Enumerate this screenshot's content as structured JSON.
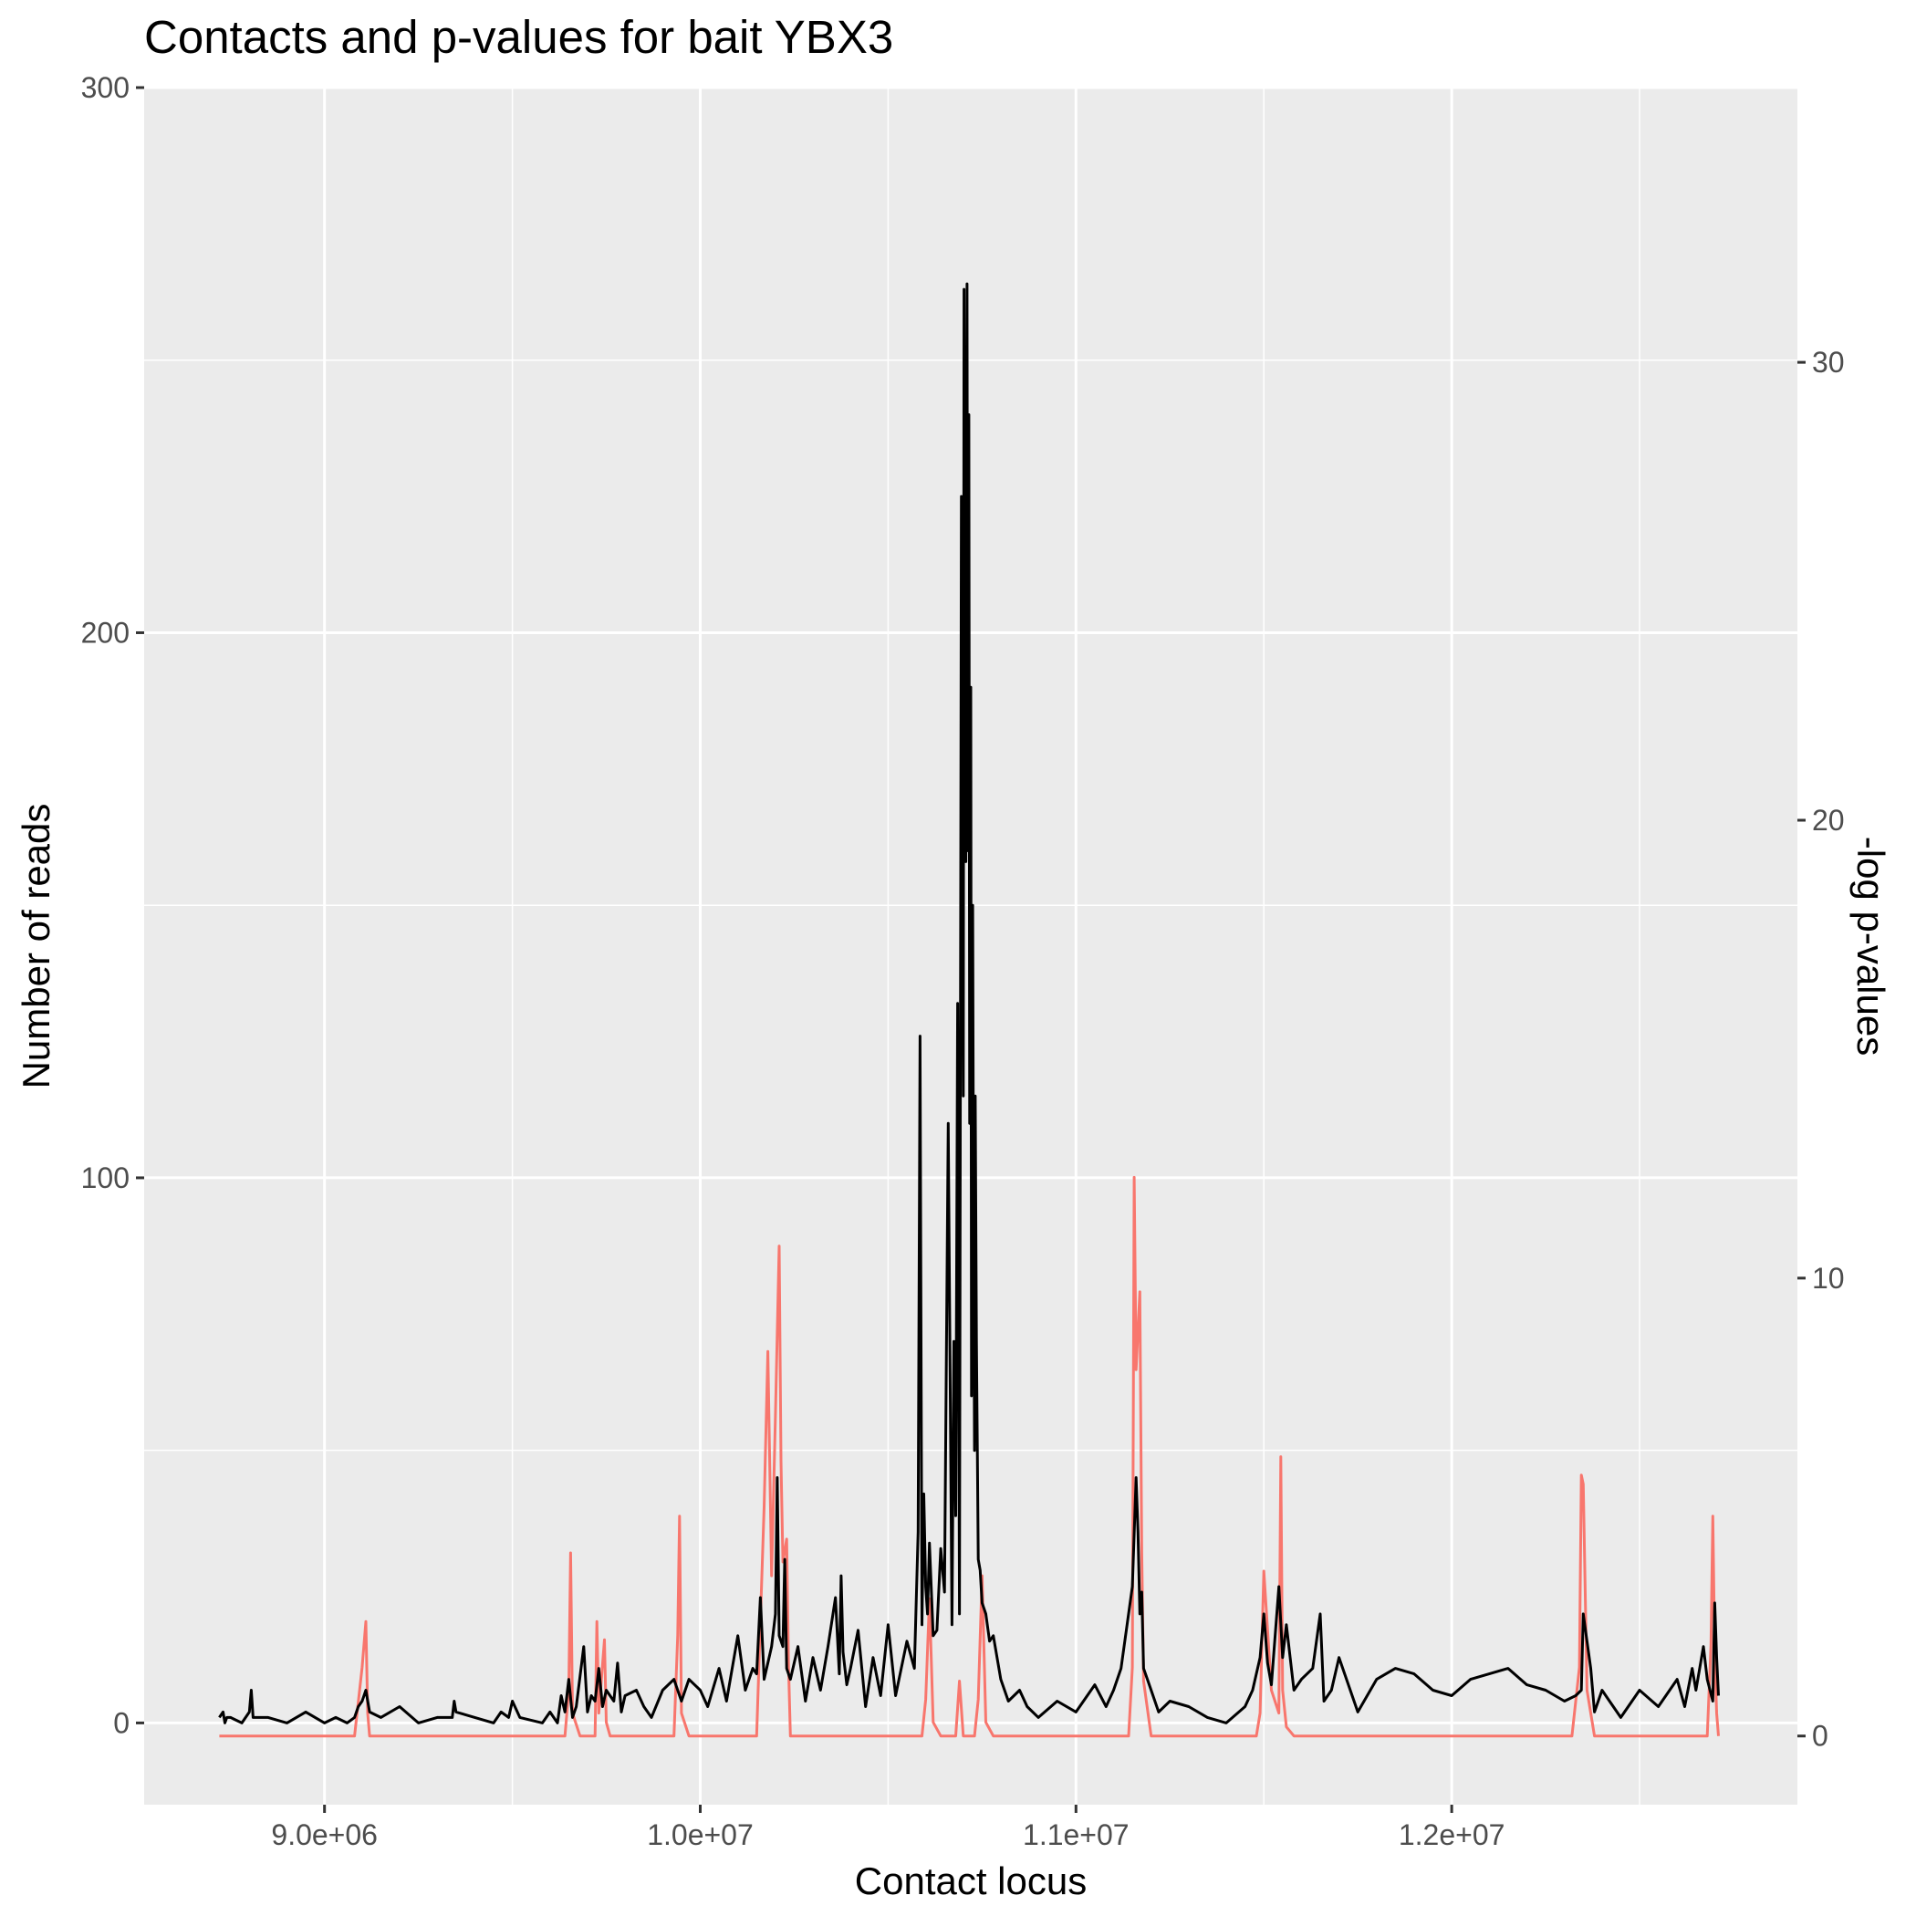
{
  "chart_data": {
    "type": "line",
    "title": "Contacts and p-values for bait YBX3",
    "xlabel": "Contact locus",
    "ylabel": "Number of reads",
    "y2label": "-log p-values",
    "xlim": [
      8520000,
      12920000
    ],
    "ylim": [
      -15,
      300
    ],
    "y2lim": [
      -1.5,
      36
    ],
    "x_ticks": [
      {
        "value": 9000000,
        "label": "9.0e+06"
      },
      {
        "value": 10000000,
        "label": "1.0e+07"
      },
      {
        "value": 11000000,
        "label": "1.1e+07"
      },
      {
        "value": 12000000,
        "label": "1.2e+07"
      }
    ],
    "x_minor_ticks": [
      9500000,
      10500000,
      11500000,
      12500000
    ],
    "y_ticks": [
      {
        "value": 0,
        "label": "0"
      },
      {
        "value": 100,
        "label": "100"
      },
      {
        "value": 200,
        "label": "200"
      },
      {
        "value": 300,
        "label": "300"
      }
    ],
    "y_minor_ticks": [
      50,
      150,
      250
    ],
    "y2_ticks": [
      {
        "value": 0,
        "label": "0"
      },
      {
        "value": 10,
        "label": "10"
      },
      {
        "value": 20,
        "label": "20"
      },
      {
        "value": 30,
        "label": "30"
      }
    ],
    "grid": true,
    "colors": {
      "panel": "#EBEBEB",
      "grid": "#FFFFFF",
      "reads": "#000000",
      "pvalues": "#F8766D"
    },
    "series": [
      {
        "axis": "left",
        "color": "#000000",
        "x": [
          8720000,
          8730000,
          8735000,
          8740000,
          8750000,
          8780000,
          8800000,
          8805000,
          8810000,
          8850000,
          8900000,
          8950000,
          9000000,
          9030000,
          9060000,
          9080000,
          9090000,
          9100000,
          9110000,
          9120000,
          9150000,
          9200000,
          9250000,
          9300000,
          9340000,
          9345000,
          9350000,
          9400000,
          9450000,
          9470000,
          9490000,
          9500000,
          9520000,
          9580000,
          9600000,
          9620000,
          9630000,
          9640000,
          9650000,
          9660000,
          9670000,
          9690000,
          9700000,
          9710000,
          9720000,
          9730000,
          9740000,
          9750000,
          9770000,
          9780000,
          9790000,
          9800000,
          9830000,
          9850000,
          9870000,
          9900000,
          9930000,
          9950000,
          9970000,
          10000000,
          10020000,
          10050000,
          10070000,
          10100000,
          10120000,
          10140000,
          10150000,
          10160000,
          10170000,
          10180000,
          10190000,
          10200000,
          10205000,
          10210000,
          10220000,
          10225000,
          10230000,
          10240000,
          10260000,
          10280000,
          10300000,
          10320000,
          10340000,
          10360000,
          10370000,
          10375000,
          10380000,
          10390000,
          10400000,
          10420000,
          10440000,
          10460000,
          10480000,
          10500000,
          10520000,
          10550000,
          10570000,
          10580000,
          10585000,
          10590000,
          10595000,
          10600000,
          10605000,
          10610000,
          10620000,
          10630000,
          10640000,
          10650000,
          10660000,
          10670000,
          10675000,
          10680000,
          10685000,
          10690000,
          10695000,
          10700000,
          10702000,
          10705000,
          10707000,
          10710000,
          10712000,
          10715000,
          10717000,
          10720000,
          10722000,
          10725000,
          10727000,
          10730000,
          10732000,
          10735000,
          10740000,
          10745000,
          10750000,
          10760000,
          10770000,
          10780000,
          10800000,
          10820000,
          10850000,
          10870000,
          10900000,
          10950000,
          11000000,
          11050000,
          11080000,
          11100000,
          11120000,
          11150000,
          11160000,
          11165000,
          11170000,
          11175000,
          11180000,
          11190000,
          11200000,
          11220000,
          11250000,
          11300000,
          11350000,
          11400000,
          11450000,
          11470000,
          11490000,
          11500000,
          11510000,
          11520000,
          11540000,
          11550000,
          11560000,
          11580000,
          11600000,
          11630000,
          11650000,
          11660000,
          11680000,
          11700000,
          11750000,
          11800000,
          11850000,
          11900000,
          11950000,
          12000000,
          12050000,
          12100000,
          12150000,
          12200000,
          12250000,
          12300000,
          12330000,
          12345000,
          12350000,
          12360000,
          12370000,
          12380000,
          12400000,
          12420000,
          12450000,
          12500000,
          12550000,
          12600000,
          12620000,
          12640000,
          12650000,
          12670000,
          12680000,
          12695000,
          12700000,
          12705000,
          12710000
        ],
        "y": [
          1,
          2,
          0,
          1,
          1,
          0,
          2,
          6,
          1,
          1,
          0,
          2,
          0,
          1,
          0,
          1,
          3,
          4,
          6,
          2,
          1,
          3,
          0,
          1,
          1,
          4,
          2,
          1,
          0,
          2,
          1,
          4,
          1,
          0,
          2,
          0,
          5,
          2,
          8,
          1,
          3,
          14,
          2,
          5,
          4,
          10,
          3,
          6,
          4,
          11,
          2,
          5,
          6,
          3,
          1,
          6,
          8,
          4,
          8,
          6,
          3,
          10,
          4,
          16,
          6,
          10,
          9,
          23,
          8,
          11,
          14,
          20,
          45,
          16,
          14,
          30,
          10,
          8,
          14,
          4,
          12,
          6,
          14,
          23,
          9,
          27,
          13,
          7,
          10,
          17,
          3,
          12,
          5,
          18,
          5,
          15,
          10,
          35,
          126,
          18,
          42,
          25,
          20,
          33,
          16,
          17,
          32,
          24,
          110,
          18,
          70,
          38,
          132,
          20,
          225,
          115,
          263,
          180,
          158,
          264,
          160,
          240,
          110,
          190,
          60,
          150,
          100,
          50,
          115,
          70,
          30,
          28,
          22,
          20,
          15,
          16,
          8,
          4,
          6,
          3,
          1,
          4,
          2,
          7,
          3,
          6,
          10,
          25,
          45,
          35,
          20,
          24,
          10,
          8,
          6,
          2,
          4,
          3,
          1,
          0,
          3,
          6,
          12,
          20,
          11,
          7,
          25,
          12,
          18,
          6,
          8,
          10,
          20,
          4,
          6,
          12,
          2,
          8,
          10,
          9,
          6,
          5,
          8,
          9,
          10,
          7,
          6,
          4,
          5,
          6,
          20,
          15,
          10,
          2,
          6,
          4,
          1,
          6,
          3,
          8,
          3,
          10,
          6,
          14,
          8,
          4,
          22,
          12,
          5
        ]
      },
      {
        "axis": "right",
        "color": "#F8766D",
        "x": [
          8720000,
          9080000,
          9100000,
          9110000,
          9115000,
          9120000,
          9140000,
          9640000,
          9650000,
          9655000,
          9660000,
          9680000,
          9720000,
          9725000,
          9730000,
          9745000,
          9750000,
          9760000,
          9930000,
          9940000,
          9945000,
          9950000,
          9970000,
          10150000,
          10170000,
          10180000,
          10190000,
          10200000,
          10210000,
          10215000,
          10220000,
          10230000,
          10235000,
          10240000,
          10260000,
          10590000,
          10600000,
          10610000,
          10620000,
          10640000,
          10680000,
          10690000,
          10700000,
          10730000,
          10740000,
          10750000,
          10760000,
          10780000,
          10800000,
          11140000,
          11150000,
          11155000,
          11160000,
          11170000,
          11175000,
          11180000,
          11200000,
          11230000,
          11480000,
          11490000,
          11500000,
          11520000,
          11540000,
          11545000,
          11550000,
          11560000,
          11580000,
          12320000,
          12340000,
          12345000,
          12350000,
          12360000,
          12380000,
          12680000,
          12690000,
          12695000,
          12700000,
          12705000,
          12710000
        ],
        "y": [
          0,
          0,
          1.5,
          2.5,
          0.5,
          0,
          0,
          0,
          1,
          4,
          0.5,
          0,
          0,
          2.5,
          0.5,
          2.1,
          0.3,
          0,
          0,
          2.2,
          4.8,
          0.5,
          0,
          0,
          5,
          8.4,
          3.5,
          7,
          10.7,
          6,
          3.8,
          4.3,
          1.5,
          0,
          0,
          0,
          0.8,
          3,
          0.3,
          0,
          0,
          1.2,
          0,
          0,
          0.8,
          3.5,
          0.3,
          0,
          0,
          0,
          1.5,
          12.2,
          8,
          9.7,
          4,
          1.2,
          0,
          0,
          0,
          0.5,
          3.6,
          1,
          0.5,
          6.1,
          1,
          0.2,
          0,
          0,
          1.5,
          5.7,
          5.5,
          1,
          0,
          0,
          2,
          4.8,
          1.8,
          0.5,
          0
        ]
      }
    ]
  }
}
